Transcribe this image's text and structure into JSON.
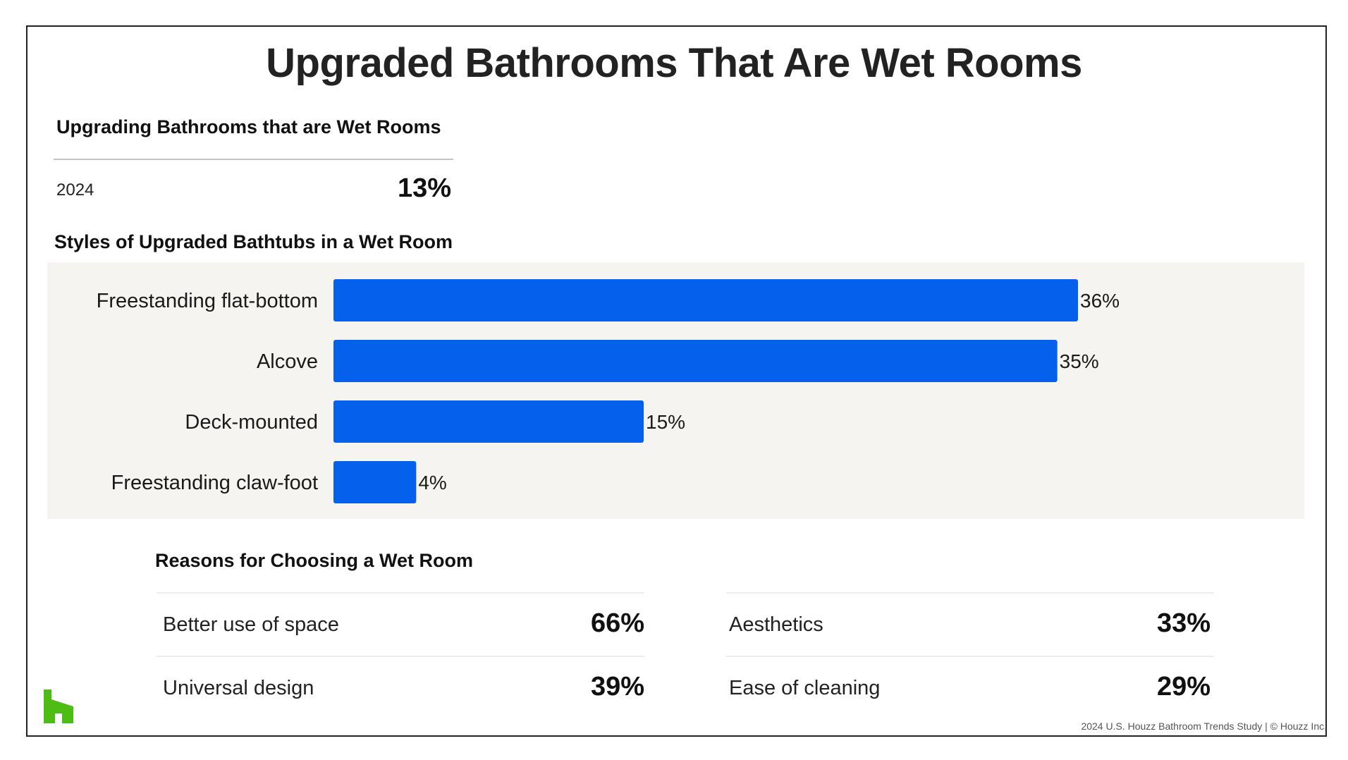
{
  "title": "Upgraded Bathrooms That Are Wet Rooms",
  "wet_rooms": {
    "heading": "Upgrading Bathrooms that are Wet Rooms",
    "year": "2024",
    "value": "13%"
  },
  "chart_data": {
    "type": "bar",
    "orientation": "horizontal",
    "title": "Styles of Upgraded Bathtubs in a Wet Room",
    "categories": [
      "Freestanding flat-bottom",
      "Alcove",
      "Deck-mounted",
      "Freestanding claw-foot"
    ],
    "values": [
      36,
      35,
      15,
      4
    ],
    "value_labels": [
      "36%",
      "35%",
      "15%",
      "4%"
    ],
    "unit": "%",
    "xlim": [
      0,
      36
    ],
    "grid": false,
    "bar_color": "#0560ec",
    "background_color": "#f5f4f1"
  },
  "reasons": {
    "heading": "Reasons for Choosing a Wet Room",
    "items": [
      {
        "label": "Better use of space",
        "value": "66%"
      },
      {
        "label": "Aesthetics",
        "value": "33%"
      },
      {
        "label": "Universal design",
        "value": "39%"
      },
      {
        "label": "Ease of cleaning",
        "value": "29%"
      }
    ]
  },
  "footer": "2024 U.S. Houzz Bathroom Trends Study  |  © Houzz Inc.",
  "logo": {
    "icon": "houzz-logo-icon",
    "color": "#4dbc15"
  }
}
